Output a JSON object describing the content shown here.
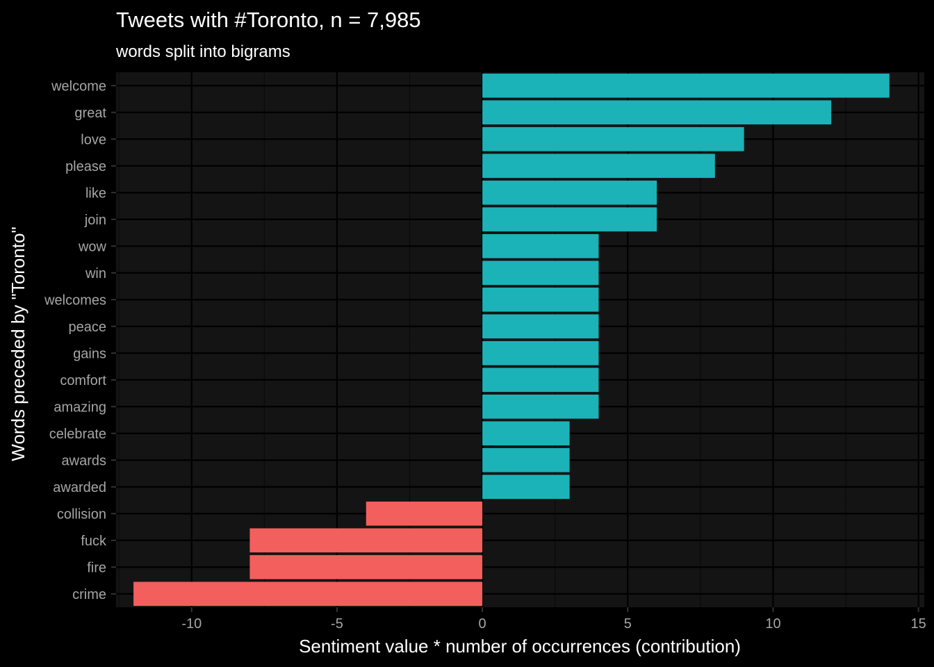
{
  "chart_data": {
    "type": "bar",
    "orientation": "horizontal",
    "title": "Tweets with #Toronto, n = 7,985",
    "subtitle": "words split into bigrams",
    "xlabel": "Sentiment value * number of occurrences (contribution)",
    "ylabel": "Words preceded by \"Toronto\"",
    "xlim": [
      -12.6,
      15.2
    ],
    "xticks": [
      -10,
      -5,
      0,
      5,
      10,
      15
    ],
    "xtick_labels": [
      "-10",
      "-5",
      "0",
      "5",
      "10",
      "15"
    ],
    "grid": true,
    "legend": "none",
    "categories": [
      "welcome",
      "great",
      "love",
      "please",
      "like",
      "join",
      "wow",
      "win",
      "welcomes",
      "peace",
      "gains",
      "comfort",
      "amazing",
      "celebrate",
      "awards",
      "awarded",
      "collision",
      "fuck",
      "fire",
      "crime"
    ],
    "values": [
      14,
      12,
      9,
      8,
      6,
      6,
      4,
      4,
      4,
      4,
      4,
      4,
      4,
      3,
      3,
      3,
      -4,
      -8,
      -8,
      -12
    ],
    "colors": {
      "positive": "#1bb3b8",
      "negative": "#f25f5c",
      "panel_background": "#141414",
      "page_background": "#000000",
      "grid_major": "#000000",
      "grid_minor": "#0a0a0a",
      "tick_label": "#a6a6a6",
      "text": "#ffffff"
    }
  }
}
